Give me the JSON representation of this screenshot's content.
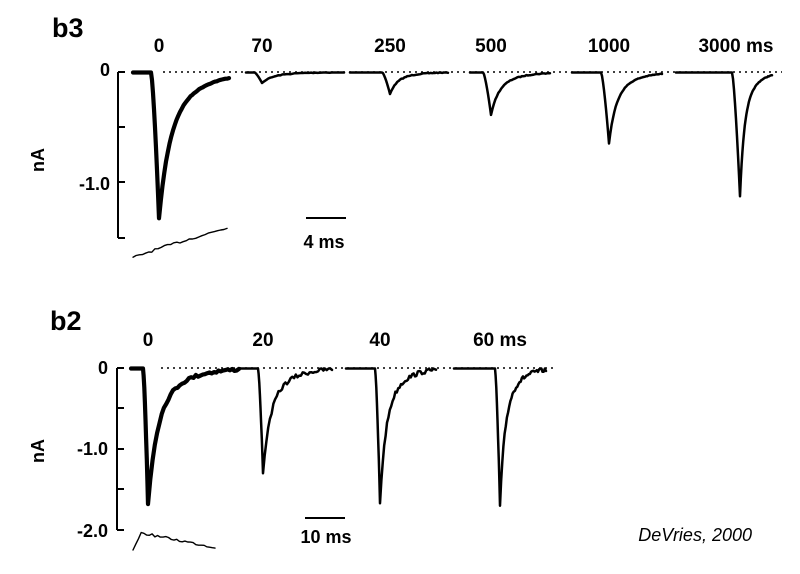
{
  "chart_data": [
    {
      "type": "line",
      "title": "b3",
      "ylabel": "nA",
      "yticks": [
        "0",
        "-1.0"
      ],
      "ylim": [
        -1.5,
        0
      ],
      "scale_bar": "4 ms",
      "series": [
        {
          "name": "0",
          "peak": -1.33
        },
        {
          "name": "70",
          "peak": -0.1
        },
        {
          "name": "250",
          "peak": -0.2
        },
        {
          "name": "500",
          "peak": -0.39
        },
        {
          "name": "1000",
          "peak": -0.65
        },
        {
          "name": "3000 ms",
          "peak": -1.13
        }
      ]
    },
    {
      "type": "line",
      "title": "b2",
      "ylabel": "nA",
      "yticks": [
        "0",
        "-1.0",
        "-2.0"
      ],
      "ylim": [
        -2.0,
        0
      ],
      "scale_bar": "10 ms",
      "series": [
        {
          "name": "0",
          "peak": -1.68
        },
        {
          "name": "20",
          "peak": -1.3
        },
        {
          "name": "40",
          "peak": -1.67
        },
        {
          "name": "60 ms",
          "peak": -1.7
        }
      ]
    }
  ],
  "credit": "DeVries, 2000"
}
